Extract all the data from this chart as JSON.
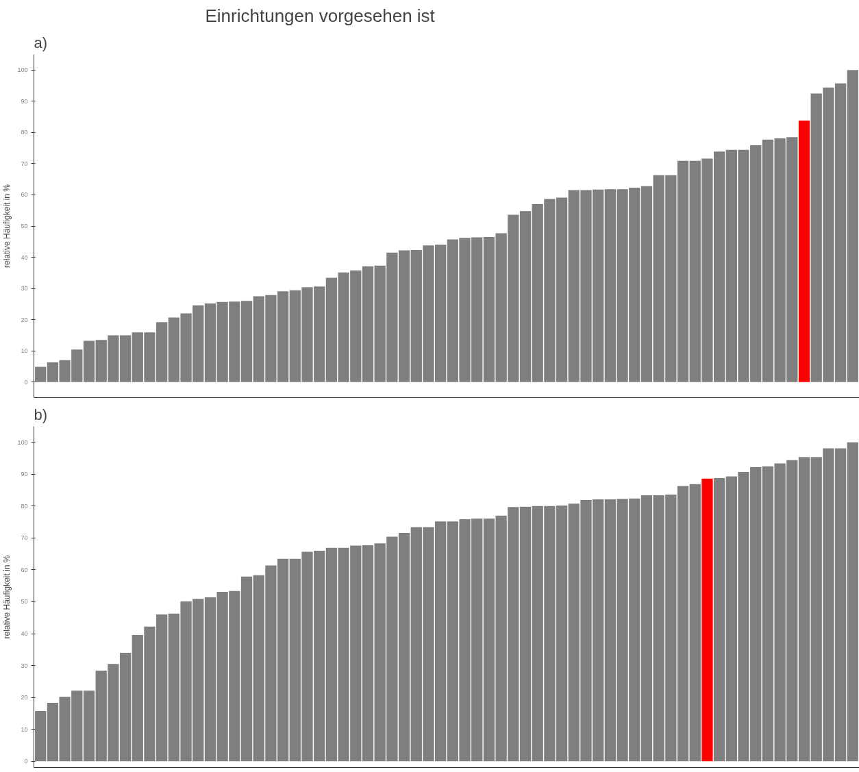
{
  "chart_data": [
    {
      "type": "bar",
      "title": "a)",
      "annotations": [
        "Einrichtungen vorgesehen ist"
      ],
      "ylabel": "relative Häufigkeit in %",
      "categories": [
        null,
        null,
        null,
        null,
        null,
        null,
        null,
        null,
        null,
        null,
        null,
        null,
        null,
        null,
        null,
        null,
        null,
        null,
        null,
        null,
        null,
        null,
        null,
        null,
        null,
        null,
        null,
        null,
        null,
        null,
        null,
        null,
        null,
        null,
        null,
        null,
        null,
        null,
        null,
        null,
        null,
        null,
        null,
        null,
        null,
        null,
        null,
        null,
        null,
        null,
        null,
        null,
        null,
        null,
        null,
        null,
        null,
        null,
        null,
        null,
        null,
        null,
        null,
        null,
        null,
        null,
        null,
        null
      ],
      "values": [
        4.9,
        6.3,
        7.0,
        10.4,
        13.2,
        13.5,
        15.0,
        15.0,
        15.9,
        15.9,
        19.2,
        20.7,
        22.0,
        24.6,
        25.2,
        25.7,
        25.8,
        26.0,
        27.5,
        27.9,
        29.1,
        29.4,
        30.4,
        30.6,
        33.4,
        35.1,
        35.8,
        37.1,
        37.3,
        41.5,
        42.2,
        42.3,
        43.8,
        44.0,
        45.7,
        46.2,
        46.4,
        46.5,
        47.7,
        53.6,
        54.8,
        57.0,
        58.7,
        59.1,
        61.5,
        61.5,
        61.7,
        61.8,
        61.8,
        62.3,
        62.8,
        66.3,
        66.3,
        70.9,
        70.9,
        71.6,
        73.9,
        74.4,
        74.4,
        75.9,
        77.7,
        78.1,
        78.5,
        83.8,
        92.5,
        94.4,
        95.7,
        100.0
      ],
      "colors": [
        "#7f7f7f",
        "#7f7f7f",
        "#7f7f7f",
        "#7f7f7f",
        "#7f7f7f",
        "#7f7f7f",
        "#7f7f7f",
        "#7f7f7f",
        "#7f7f7f",
        "#7f7f7f",
        "#7f7f7f",
        "#7f7f7f",
        "#7f7f7f",
        "#7f7f7f",
        "#7f7f7f",
        "#7f7f7f",
        "#7f7f7f",
        "#7f7f7f",
        "#7f7f7f",
        "#7f7f7f",
        "#7f7f7f",
        "#7f7f7f",
        "#7f7f7f",
        "#7f7f7f",
        "#7f7f7f",
        "#7f7f7f",
        "#7f7f7f",
        "#7f7f7f",
        "#7f7f7f",
        "#7f7f7f",
        "#7f7f7f",
        "#7f7f7f",
        "#7f7f7f",
        "#7f7f7f",
        "#7f7f7f",
        "#7f7f7f",
        "#7f7f7f",
        "#7f7f7f",
        "#7f7f7f",
        "#7f7f7f",
        "#7f7f7f",
        "#7f7f7f",
        "#7f7f7f",
        "#7f7f7f",
        "#7f7f7f",
        "#7f7f7f",
        "#7f7f7f",
        "#7f7f7f",
        "#7f7f7f",
        "#7f7f7f",
        "#7f7f7f",
        "#7f7f7f",
        "#7f7f7f",
        "#7f7f7f",
        "#7f7f7f",
        "#7f7f7f",
        "#7f7f7f",
        "#7f7f7f",
        "#7f7f7f",
        "#7f7f7f",
        "#7f7f7f",
        "#7f7f7f",
        "#7f7f7f",
        "#ff0000",
        "#7f7f7f",
        "#7f7f7f",
        "#7f7f7f",
        "#7f7f7f"
      ],
      "ylim": [
        -5,
        105
      ],
      "yticks": [
        0,
        10,
        20,
        30,
        40,
        50,
        60,
        70,
        80,
        90,
        100
      ],
      "tick_labels": "y",
      "grid": false
    },
    {
      "type": "bar",
      "title": "b)",
      "ylabel": "relative Häufigkeit in %",
      "categories": [
        null,
        null,
        null,
        null,
        null,
        null,
        null,
        null,
        null,
        null,
        null,
        null,
        null,
        null,
        null,
        null,
        null,
        null,
        null,
        null,
        null,
        null,
        null,
        null,
        null,
        null,
        null,
        null,
        null,
        null,
        null,
        null,
        null,
        null,
        null,
        null,
        null,
        null,
        null,
        null,
        null,
        null,
        null,
        null,
        null,
        null,
        null,
        null,
        null,
        null,
        null,
        null,
        null,
        null,
        null,
        null,
        null,
        null,
        null,
        null,
        null,
        null,
        null,
        null,
        null,
        null,
        null,
        null
      ],
      "values": [
        15.7,
        18.3,
        20.2,
        22.1,
        22.1,
        28.4,
        30.5,
        34.0,
        39.6,
        42.2,
        46.0,
        46.3,
        50.1,
        50.9,
        51.4,
        53.1,
        53.4,
        57.9,
        58.3,
        61.4,
        63.5,
        63.5,
        65.7,
        66.0,
        66.9,
        66.9,
        67.6,
        67.7,
        68.3,
        70.4,
        71.6,
        73.4,
        73.4,
        75.2,
        75.2,
        75.9,
        76.1,
        76.1,
        77.0,
        79.7,
        79.8,
        80.0,
        80.0,
        80.2,
        80.8,
        81.9,
        82.1,
        82.1,
        82.3,
        82.4,
        83.4,
        83.4,
        83.6,
        86.3,
        86.9,
        88.6,
        88.8,
        89.3,
        90.7,
        92.2,
        92.5,
        93.4,
        94.4,
        95.4,
        95.4,
        98.1,
        98.1,
        100.0
      ],
      "colors": [
        "#7f7f7f",
        "#7f7f7f",
        "#7f7f7f",
        "#7f7f7f",
        "#7f7f7f",
        "#7f7f7f",
        "#7f7f7f",
        "#7f7f7f",
        "#7f7f7f",
        "#7f7f7f",
        "#7f7f7f",
        "#7f7f7f",
        "#7f7f7f",
        "#7f7f7f",
        "#7f7f7f",
        "#7f7f7f",
        "#7f7f7f",
        "#7f7f7f",
        "#7f7f7f",
        "#7f7f7f",
        "#7f7f7f",
        "#7f7f7f",
        "#7f7f7f",
        "#7f7f7f",
        "#7f7f7f",
        "#7f7f7f",
        "#7f7f7f",
        "#7f7f7f",
        "#7f7f7f",
        "#7f7f7f",
        "#7f7f7f",
        "#7f7f7f",
        "#7f7f7f",
        "#7f7f7f",
        "#7f7f7f",
        "#7f7f7f",
        "#7f7f7f",
        "#7f7f7f",
        "#7f7f7f",
        "#7f7f7f",
        "#7f7f7f",
        "#7f7f7f",
        "#7f7f7f",
        "#7f7f7f",
        "#7f7f7f",
        "#7f7f7f",
        "#7f7f7f",
        "#7f7f7f",
        "#7f7f7f",
        "#7f7f7f",
        "#7f7f7f",
        "#7f7f7f",
        "#7f7f7f",
        "#7f7f7f",
        "#7f7f7f",
        "#ff0000",
        "#7f7f7f",
        "#7f7f7f",
        "#7f7f7f",
        "#7f7f7f",
        "#7f7f7f",
        "#7f7f7f",
        "#7f7f7f",
        "#7f7f7f",
        "#7f7f7f",
        "#7f7f7f",
        "#7f7f7f",
        "#7f7f7f"
      ],
      "ylim": [
        -2,
        105
      ],
      "yticks": [
        0,
        10,
        20,
        30,
        40,
        50,
        60,
        70,
        80,
        90,
        100
      ],
      "tick_labels": "y",
      "grid": false
    }
  ]
}
